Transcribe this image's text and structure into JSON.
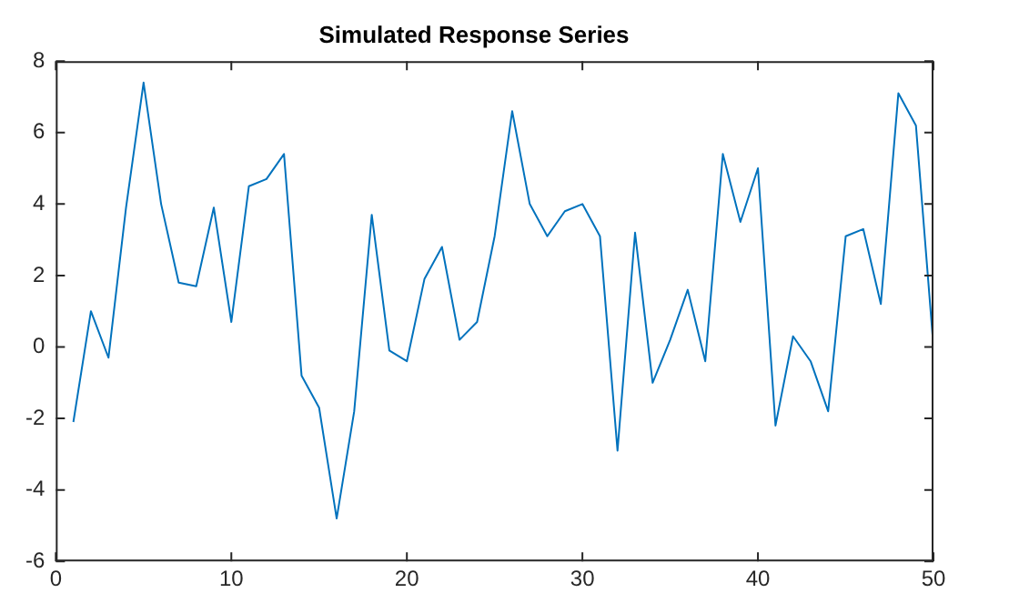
{
  "chart_data": {
    "type": "line",
    "title": "Simulated Response Series",
    "x": [
      1,
      2,
      3,
      4,
      5,
      6,
      7,
      8,
      9,
      10,
      11,
      12,
      13,
      14,
      15,
      16,
      17,
      18,
      19,
      20,
      21,
      22,
      23,
      24,
      25,
      26,
      27,
      28,
      29,
      30,
      31,
      32,
      33,
      34,
      35,
      36,
      37,
      38,
      39,
      40,
      41,
      42,
      43,
      44,
      45,
      46,
      47,
      48,
      49,
      50
    ],
    "series": [
      {
        "color": "#0072bd",
        "values": [
          -2.1,
          1.0,
          -0.3,
          3.9,
          7.4,
          4.0,
          1.8,
          1.7,
          3.9,
          0.7,
          4.5,
          4.7,
          5.4,
          -0.8,
          -1.7,
          -4.8,
          -1.8,
          3.7,
          -0.1,
          -0.4,
          1.9,
          2.8,
          0.2,
          0.7,
          3.1,
          6.6,
          4.0,
          3.1,
          3.8,
          4.0,
          3.1,
          -2.9,
          3.2,
          -1.0,
          0.2,
          1.6,
          -0.4,
          5.4,
          3.5,
          5.0,
          -2.2,
          0.3,
          -0.4,
          -1.8,
          3.1,
          3.3,
          1.2,
          7.1,
          6.2,
          0.0
        ]
      }
    ],
    "xlim": [
      0,
      50
    ],
    "xticks": [
      0,
      10,
      20,
      30,
      40,
      50
    ],
    "ylim": [
      -6,
      8
    ],
    "yticks": [
      -6,
      -4,
      -2,
      0,
      2,
      4,
      6,
      8
    ],
    "grid": false,
    "legend": false,
    "marker": "none",
    "line_style": "solid"
  }
}
